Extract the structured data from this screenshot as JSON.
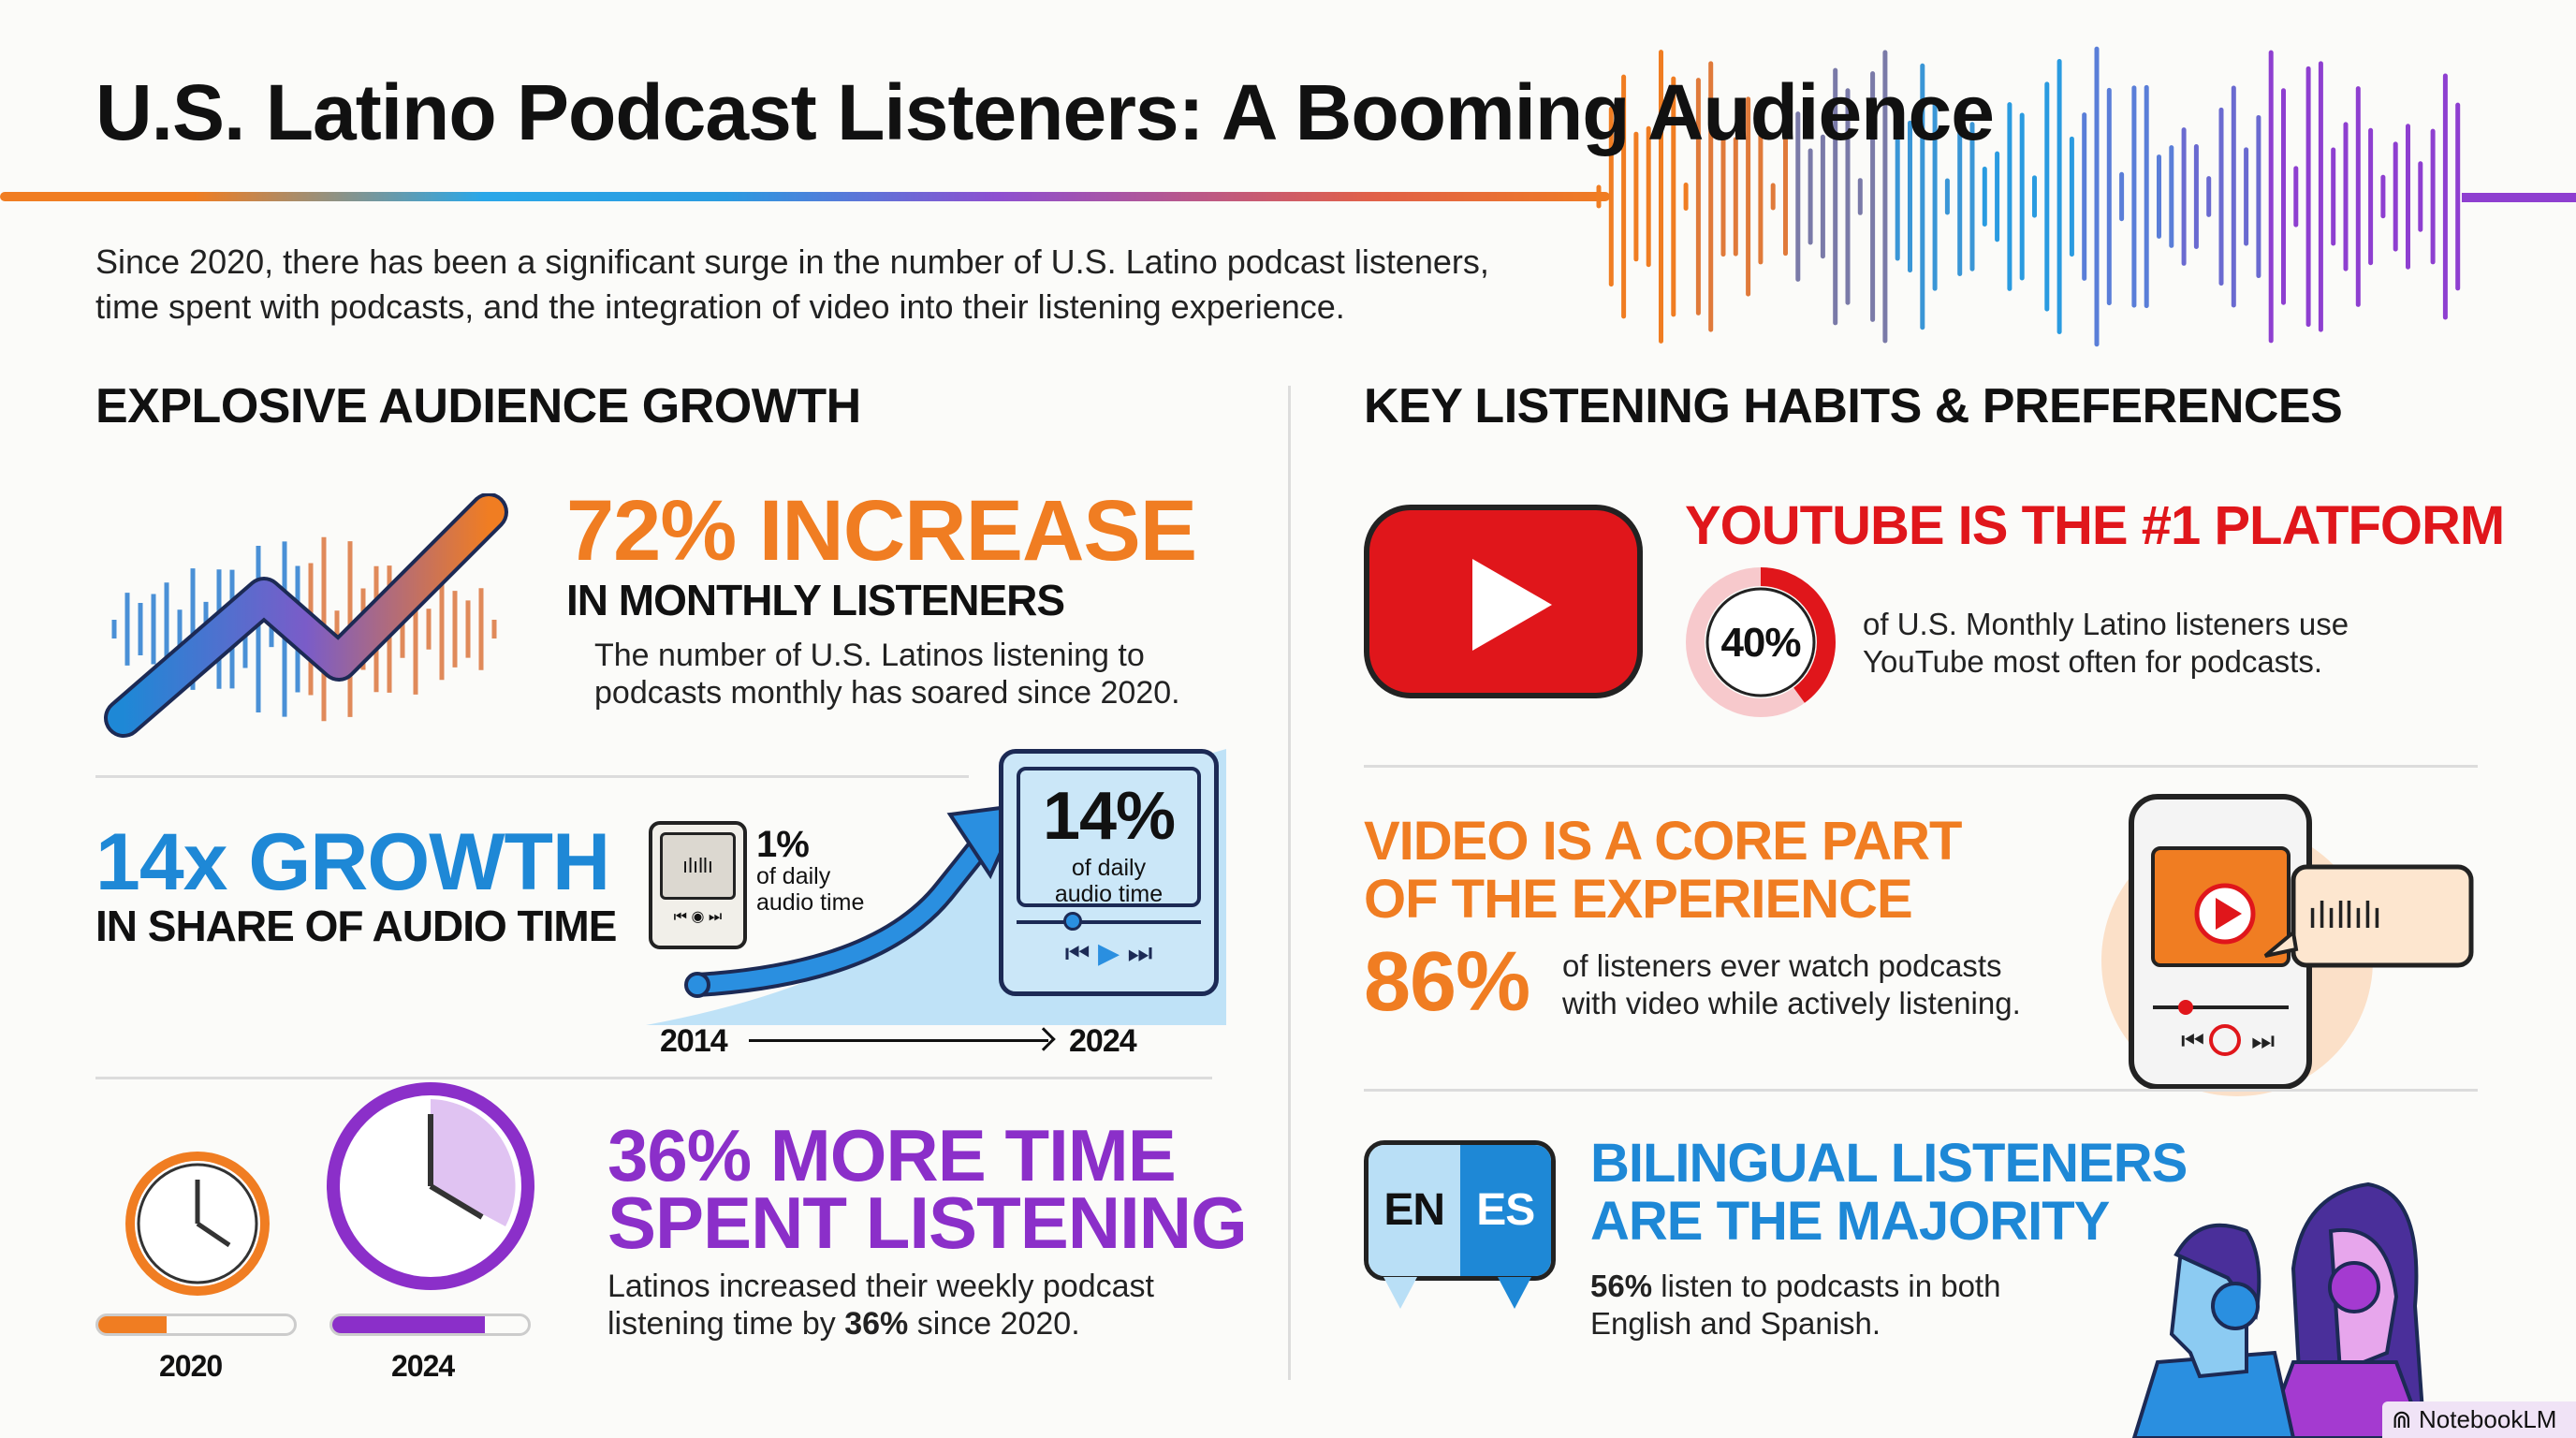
{
  "title": "U.S. Latino Podcast Listeners: A Booming Audience",
  "subtitle": [
    "Since 2020, there has been a significant surge in the number of U.S. Latino podcast listeners,",
    "time spent with podcasts, and the integration of video into their listening experience."
  ],
  "left": {
    "heading": "EXPLOSIVE AUDIENCE GROWTH",
    "increase": {
      "headline": "72% INCREASE",
      "subhead": "IN MONTHLY LISTENERS",
      "desc": [
        "The number of U.S. Latinos listening to",
        "podcasts monthly has soared since 2020."
      ]
    },
    "growth": {
      "headline": "14x GROWTH",
      "subhead": "IN SHARE OF AUDIO TIME",
      "start_value": "1%",
      "start_label": [
        "of daily",
        "audio time"
      ],
      "end_value": "14%",
      "end_label": [
        "of daily",
        "audio time"
      ],
      "start_year": "2014",
      "end_year": "2024"
    },
    "time": {
      "headline": [
        "36% MORE TIME",
        "SPENT LISTENING"
      ],
      "desc_1": "Latinos increased their weekly podcast",
      "desc_2a": "listening time by ",
      "desc_2b": "36%",
      "desc_2c": " since 2020.",
      "year_a": "2020",
      "year_b": "2024",
      "bar_a_fill": 0.35,
      "bar_b_fill": 0.78
    }
  },
  "right": {
    "heading": "KEY LISTENING HABITS & PREFERENCES",
    "youtube": {
      "headline": "YOUTUBE IS THE #1 PLATFORM",
      "value": "40%",
      "fraction": 0.4,
      "desc": [
        "of U.S. Monthly Latino listeners use",
        "YouTube most often for podcasts."
      ]
    },
    "video": {
      "headline": [
        "VIDEO IS A CORE PART",
        "OF THE EXPERIENCE"
      ],
      "value": "86%",
      "desc": [
        "of listeners ever watch podcasts",
        "with video while actively listening."
      ]
    },
    "bilingual": {
      "lang_a": "EN",
      "lang_b": "ES",
      "headline": [
        "BILINGUAL LISTENERS",
        "ARE THE MAJORITY"
      ],
      "desc_a": "56%",
      "desc_b": " listen to podcasts in both",
      "desc_2": "English and Spanish."
    }
  },
  "watermark": "NotebookLM",
  "colors": {
    "orange": "#f07d22",
    "blue": "#1e88d6",
    "purple": "#8b2fc9",
    "red": "#e0161b"
  }
}
